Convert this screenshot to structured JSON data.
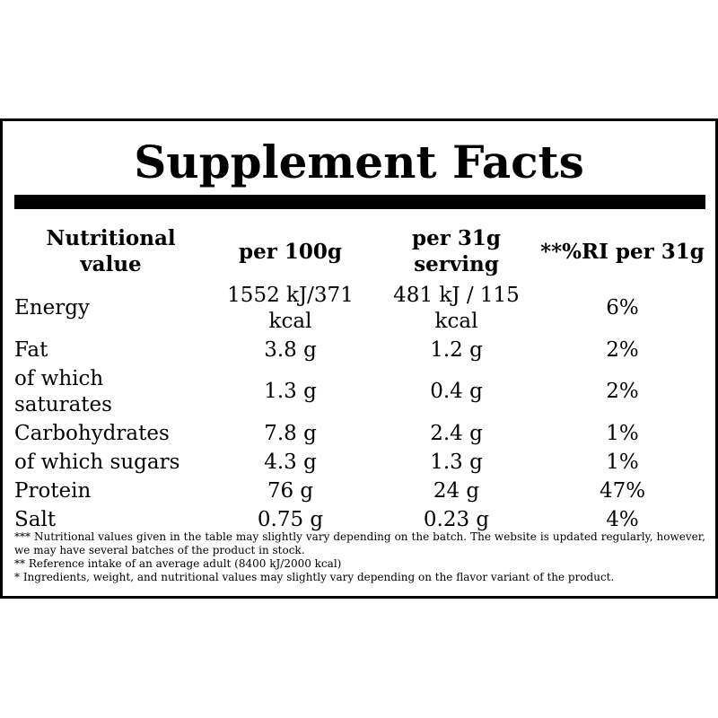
{
  "title": "Supplement Facts",
  "table": {
    "headers": [
      "Nutritional value",
      "per 100g",
      "per 31g serving",
      "**%RI per 31g"
    ],
    "rows": [
      {
        "name": "Energy",
        "per100": "1552 kJ/371 kcal",
        "perServing": "481 kJ / 115 kcal",
        "ri": "6%"
      },
      {
        "name": "Fat",
        "per100": "3.8 g",
        "perServing": "1.2 g",
        "ri": "2%"
      },
      {
        "name": "of which saturates",
        "per100": "1.3 g",
        "perServing": "0.4 g",
        "ri": "2%"
      },
      {
        "name": "Carbohydrates",
        "per100": "7.8 g",
        "perServing": "2.4 g",
        "ri": "1%"
      },
      {
        "name": "of which sugars",
        "per100": "4.3 g",
        "perServing": "1.3 g",
        "ri": "1%"
      },
      {
        "name": "Protein",
        "per100": "76 g",
        "perServing": "24 g",
        "ri": "47%"
      },
      {
        "name": "Salt",
        "per100": "0.75 g",
        "perServing": "0.23 g",
        "ri": "4%"
      }
    ]
  },
  "footnotes": [
    "*** Nutritional values given in the table may slightly vary depending on the batch. The website is updated regularly, however, we may have several batches of the product in stock.",
    "** Reference intake of an average adult (8400 kJ/2000 kcal)",
    "* Ingredients, weight, and nutritional values may slightly vary depending on the flavor variant of the product."
  ]
}
